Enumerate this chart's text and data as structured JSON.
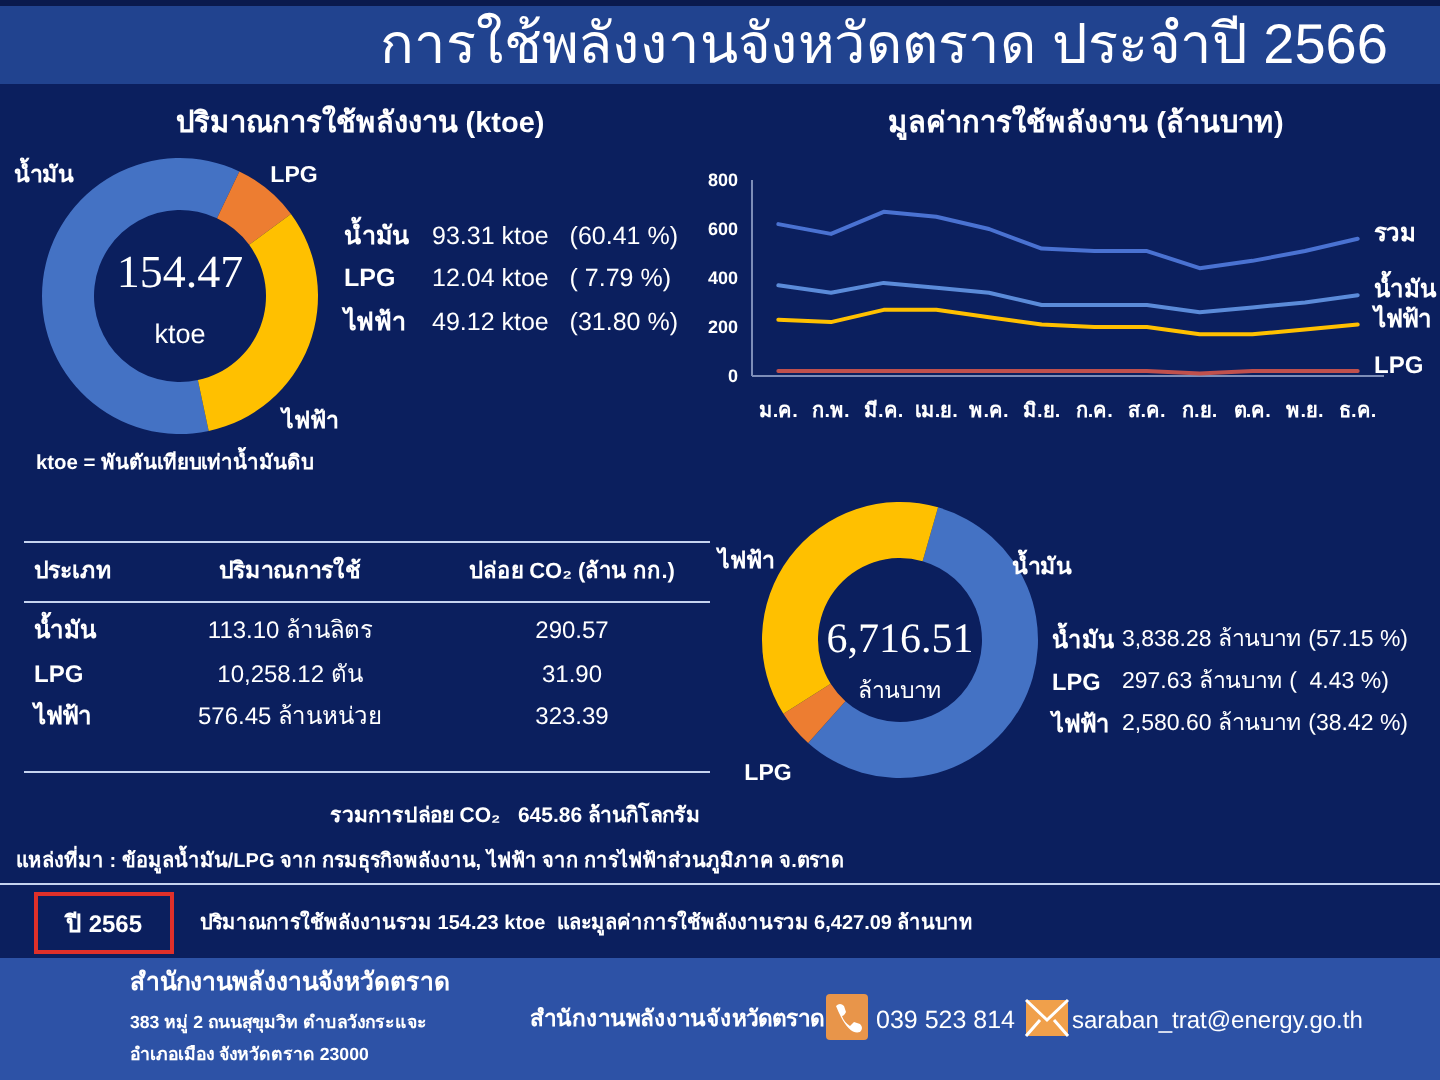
{
  "chart_data": [
    {
      "type": "other",
      "title": "การใช้พลังงานจังหวัดตราด ประจำปี 2566"
    },
    {
      "type": "donut",
      "title": "ปริมาณการใช้พลังงาน (ktoe)",
      "categories": [
        "น้ำมัน",
        "LPG",
        "ไฟฟ้า"
      ],
      "values": [
        60.41,
        7.79,
        31.8
      ],
      "colors": [
        "#4472c4",
        "#ed7d31",
        "#ffc000"
      ],
      "annotations": [
        "154.47",
        "ktoe",
        "93.31 ktoe   (60.41 %)",
        "12.04 ktoe   ( 7.79 %)",
        "49.12 ktoe   (31.80 %)",
        "ktoe = พันตันเทียบเท่าน้ำมันดิบ"
      ]
    },
    {
      "type": "line",
      "title": "มูลค่าการใช้พลังงาน (ล้านบาท)",
      "categories": [
        "ม.ค.",
        "ก.พ.",
        "มี.ค.",
        "เม.ย.",
        "พ.ค.",
        "มิ.ย.",
        "ก.ค.",
        "ส.ค.",
        "ก.ย.",
        "ต.ค.",
        "พ.ย.",
        "ธ.ค."
      ],
      "series": [
        {
          "name": "รวม",
          "color": "#4a72d2",
          "values": [
            620,
            580,
            670,
            650,
            600,
            520,
            510,
            510,
            440,
            470,
            510,
            560
          ]
        },
        {
          "name": "น้ำมัน",
          "color": "#5b8bd9",
          "values": [
            370,
            340,
            380,
            360,
            340,
            290,
            290,
            290,
            260,
            280,
            300,
            330
          ]
        },
        {
          "name": "ไฟฟ้า",
          "color": "#ffc000",
          "values": [
            230,
            220,
            270,
            270,
            240,
            210,
            200,
            200,
            170,
            170,
            190,
            210
          ]
        },
        {
          "name": "LPG",
          "color": "#c0504d",
          "values": [
            20,
            20,
            20,
            20,
            20,
            20,
            20,
            20,
            10,
            20,
            20,
            20
          ]
        }
      ],
      "ylim": [
        0,
        800
      ],
      "yticks": [
        0,
        200,
        400,
        600,
        800
      ]
    },
    {
      "type": "other",
      "annotations": [
        "ประเภท",
        "ปริมาณการใช้",
        "ปล่อย CO₂ (ล้าน กก.)",
        "น้ำมัน",
        "113.10 ล้านลิตร",
        "290.57",
        "LPG",
        "10,258.12 ตัน",
        "31.90",
        "ไฟฟ้า",
        "576.45 ล้านหน่วย",
        "323.39",
        "รวมการปล่อย CO₂   645.86 ล้านกิโลกรัม"
      ]
    },
    {
      "type": "donut",
      "categories": [
        "น้ำมัน",
        "LPG",
        "ไฟฟ้า"
      ],
      "values": [
        57.15,
        4.43,
        38.42
      ],
      "colors": [
        "#4472c4",
        "#ed7d31",
        "#ffc000"
      ],
      "annotations": [
        "6,716.51",
        "ล้านบาท",
        "3,838.28 ล้านบาท (57.15 %)",
        "297.63 ล้านบาท (  4.43 %)",
        "2,580.60 ล้านบาท (38.42 %)"
      ]
    },
    {
      "type": "other",
      "annotations": [
        "แหล่งที่มา : ข้อมูลน้ำมัน/LPG จาก กรมธุรกิจพลังงาน, ไฟฟ้า จาก การไฟฟ้าส่วนภูมิภาค จ.ตราด",
        "ปี 2565",
        "ปริมาณการใช้พลังงานรวม 154.23 ktoe  และมูลค่าการใช้พลังงานรวม 6,427.09 ล้านบาท",
        "สำนักงานพลังงานจังหวัดตราด",
        "383 หมู่ 2 ถนนสุขุมวิท ตำบลวังกระแจะ",
        "อำเภอเมือง จังหวัดตราด 23000",
        "สำนักงานพลังงานจังหวัดตราด",
        "039 523 814",
        "saraban_trat@energy.go.th"
      ]
    }
  ]
}
